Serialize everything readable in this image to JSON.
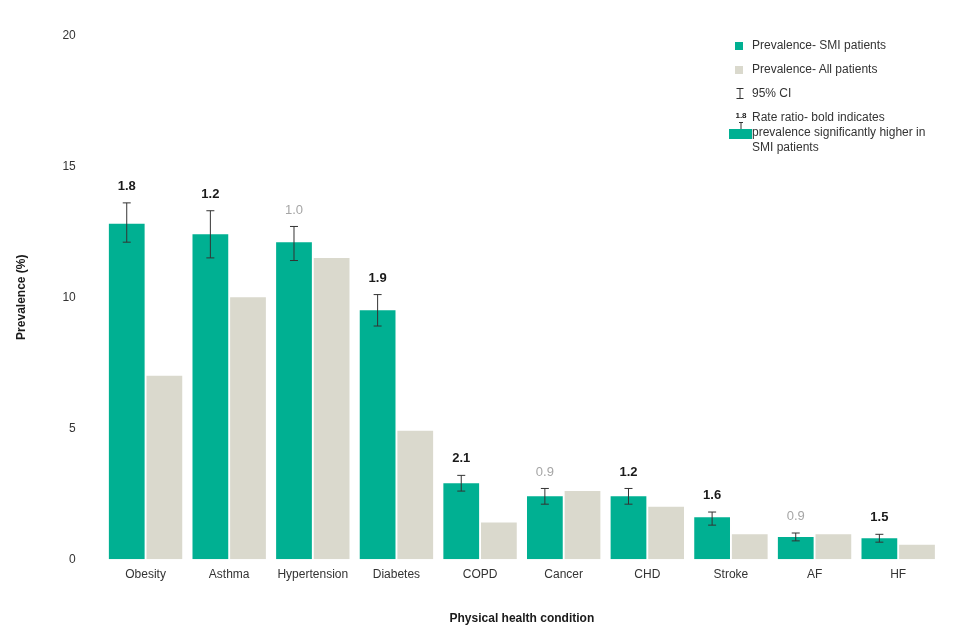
{
  "chart_data": {
    "type": "bar",
    "x_label": "Physical health condition",
    "y_label": "Prevalence (%)",
    "categories": [
      "Obesity",
      "Asthma",
      "Hypertension",
      "Diabetes",
      "COPD",
      "Cancer",
      "CHD",
      "Stroke",
      "AF",
      "HF"
    ],
    "series": [
      {
        "name": "Prevalence- SMI patients",
        "color": "#00b092",
        "values": [
          12.8,
          12.4,
          12.1,
          9.5,
          2.9,
          2.4,
          2.4,
          1.6,
          0.85,
          0.8
        ],
        "ci_low": [
          12.1,
          11.5,
          11.4,
          8.9,
          2.6,
          2.1,
          2.1,
          1.3,
          0.7,
          0.65
        ],
        "ci_high": [
          13.6,
          13.3,
          12.7,
          10.1,
          3.2,
          2.7,
          2.7,
          1.8,
          1.0,
          0.95
        ]
      },
      {
        "name": "Prevalence- All patients",
        "color": "#dad9cd",
        "values": [
          7.0,
          10.0,
          11.5,
          4.9,
          1.4,
          2.6,
          2.0,
          0.95,
          0.95,
          0.55
        ]
      }
    ],
    "rate_ratios": [
      {
        "value": 1.8,
        "label": "1.8"
      },
      {
        "value": 1.2,
        "label": "1.2"
      },
      {
        "value": 1.0,
        "label": "1.0"
      },
      {
        "value": 1.9,
        "label": "1.9"
      },
      {
        "value": 2.1,
        "label": "2.1"
      },
      {
        "value": 0.9,
        "label": "0.9"
      },
      {
        "value": 1.2,
        "label": "1.2"
      },
      {
        "value": 1.6,
        "label": "1.6"
      },
      {
        "value": 0.9,
        "label": "0.9"
      },
      {
        "value": 1.5,
        "label": "1.5"
      }
    ],
    "rate_ratio_significant": [
      true,
      true,
      false,
      true,
      true,
      false,
      true,
      true,
      false,
      true
    ],
    "ylim": [
      0,
      20
    ],
    "yticks": [
      0,
      5,
      10,
      15,
      20
    ],
    "grid": false,
    "legend": "top right",
    "legend_notes": [
      {
        "marker": "error_bar",
        "text": "95% CI"
      },
      {
        "marker": "rate_ratio",
        "text": "Rate ratio- bold indicates prevalence significantly higher in SMI patients",
        "example": "1.8"
      }
    ]
  }
}
